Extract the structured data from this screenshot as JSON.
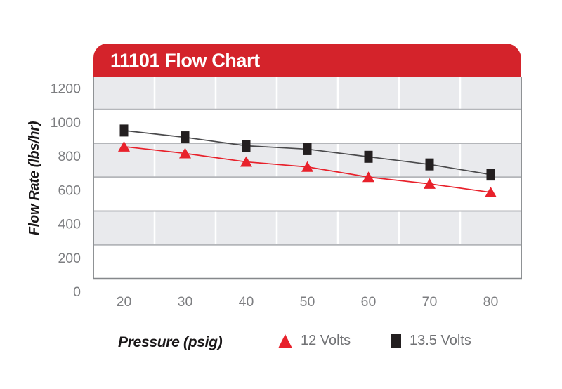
{
  "title": "11101 Flow Chart",
  "chart_data": {
    "type": "line",
    "title": "11101 Flow Chart",
    "xlabel": "Pressure (psig)",
    "ylabel": "Flow Rate (lbs/hr)",
    "categories": [
      20,
      30,
      40,
      50,
      60,
      70,
      80
    ],
    "series": [
      {
        "name": "13.5 Volts",
        "marker": "square",
        "color": "#231f20",
        "line_color": "#4a4a4c",
        "values": [
          875,
          835,
          785,
          765,
          720,
          675,
          615
        ]
      },
      {
        "name": "12 Volts",
        "marker": "triangle",
        "color": "#e8212b",
        "line_color": "#e8212b",
        "values": [
          780,
          740,
          690,
          660,
          600,
          560,
          510
        ]
      }
    ],
    "ylim": [
      0,
      1200
    ],
    "ytick_step": 200,
    "grid": "horizontal gridlines, alternating gray band fills, white vertical separators between categories",
    "legend_position": "bottom"
  },
  "colors": {
    "banner_red": "#d4232b",
    "band_gray": "#e9eaed",
    "h_gridline": "#b4b6ba",
    "v_gridline": "#ffffff",
    "axis_line": "#8f9295",
    "tick_text": "#7d7e81",
    "legend_text": "#717275",
    "series_red": "#e8212b",
    "series_black": "#231f20"
  }
}
